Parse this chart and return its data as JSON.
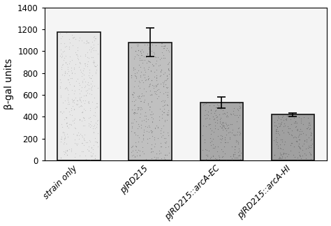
{
  "categories": [
    "strain only",
    "pJRD215",
    "pJRD215::arcA-EC",
    "pJRD215::arcA-HI"
  ],
  "values": [
    1175,
    1080,
    530,
    420
  ],
  "errors": [
    0,
    130,
    50,
    15
  ],
  "bar_face_colors": [
    "#d8d8d8",
    "#b0b0b0",
    "#989898",
    "#909090"
  ],
  "bar_hatch_colors": [
    "#aaaaaa",
    "#888888",
    "#707070",
    "#686868"
  ],
  "ylabel": "β-gal units",
  "ylim": [
    0,
    1400
  ],
  "yticks": [
    0,
    200,
    400,
    600,
    800,
    1000,
    1200,
    1400
  ],
  "bar_width": 0.6,
  "background_color": "#ffffff",
  "edge_color": "#000000",
  "error_capsize": 4,
  "error_color": "#000000",
  "ylabel_fontsize": 10,
  "tick_fontsize": 8.5,
  "xlabel_fontsize": 8.5
}
